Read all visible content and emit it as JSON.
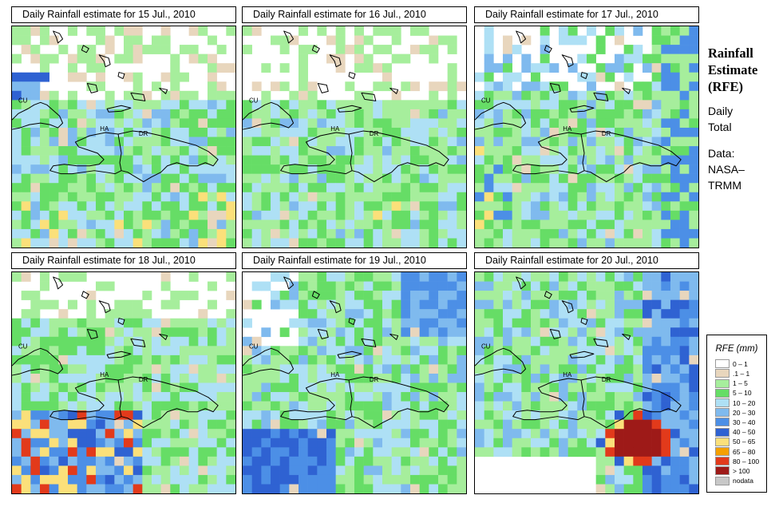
{
  "panels": [
    {
      "title": "Daily Rainfall estimate for  15 Jul., 2010",
      "labels": {
        "cu": "CU",
        "ha": "HA",
        "dr": "DR"
      },
      "pattern": "light-north-heavier-south",
      "seed": 11
    },
    {
      "title": "Daily Rainfall estimate for  16 Jul., 2010",
      "labels": {
        "cu": "CU",
        "ha": "HA",
        "dr": "DR"
      },
      "pattern": "moderate-south",
      "seed": 23
    },
    {
      "title": "Daily Rainfall estimate for  17 Jul., 2010",
      "labels": {
        "cu": "CU",
        "ha": "HA",
        "dr": "DR"
      },
      "pattern": "heavy-west-and-east",
      "seed": 37
    },
    {
      "title": "Daily Rainfall estimate for  18 Jul., 2010",
      "labels": {
        "cu": "CU",
        "ha": "HA",
        "dr": "DR"
      },
      "pattern": "heavy-southwest",
      "seed": 41
    },
    {
      "title": "Daily Rainfall estimate for  19 Jul., 2010",
      "labels": {
        "cu": "CU",
        "ha": "HA",
        "dr": "DR"
      },
      "pattern": "heavier-southwest-and-northeast",
      "seed": 53
    },
    {
      "title": "Daily Rainfall estimate for  20 Jul., 2010",
      "labels": {
        "cu": "CU",
        "ha": "HA",
        "dr": "DR"
      },
      "pattern": "extreme-south-of-dr",
      "seed": 67
    }
  ],
  "sidebar": {
    "title_lines": [
      "Rainfall",
      "Estimate",
      "(RFE)"
    ],
    "daily_total_lines": [
      "Daily",
      "Total"
    ],
    "data_lines": [
      "Data:",
      "NASA–",
      "TRMM"
    ]
  },
  "legend": {
    "title": "RFE (mm)",
    "items": [
      {
        "label": "0 – 1",
        "color": "#ffffff"
      },
      {
        "label": ".1 – 1",
        "color": "#e8d6bd"
      },
      {
        "label": "1 – 5",
        "color": "#a6ee9c"
      },
      {
        "label": "5 – 10",
        "color": "#66dd66"
      },
      {
        "label": "10 – 20",
        "color": "#aee0f5"
      },
      {
        "label": "20 – 30",
        "color": "#7fbaee"
      },
      {
        "label": "30 – 40",
        "color": "#4c8fe6"
      },
      {
        "label": "40 – 50",
        "color": "#2f62d2"
      },
      {
        "label": "50 – 65",
        "color": "#fbe07a"
      },
      {
        "label": "65 – 80",
        "color": "#f5a000"
      },
      {
        "label": "80 – 100",
        "color": "#e23a1b"
      },
      {
        "label": "> 100",
        "color": "#9e1a18"
      },
      {
        "label": "nodata",
        "color": "#c8c8c8"
      }
    ]
  }
}
